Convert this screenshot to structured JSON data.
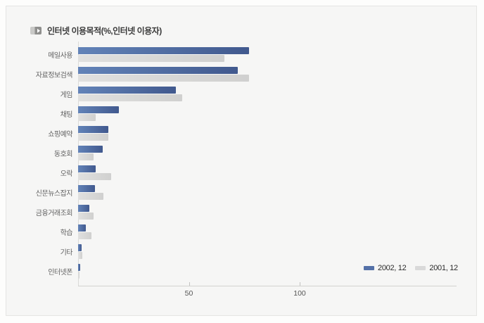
{
  "title": {
    "text": "인터넷 이용목적(%,인터넷 이용자)",
    "icon": "play-arrow-icon"
  },
  "legend": {
    "items": [
      {
        "label": "2002, 12",
        "color": "#5471a8"
      },
      {
        "label": "2001, 12",
        "color": "#d9d9d9"
      }
    ]
  },
  "chart_data": {
    "type": "bar",
    "orientation": "horizontal",
    "title": "인터넷 이용목적(%,인터넷 이용자)",
    "unit": "%",
    "categories": [
      "메일사용",
      "자료정보검색",
      "게임",
      "채팅",
      "쇼핑예약",
      "동호회",
      "오락",
      "신문뉴스잡지",
      "금융거래조회",
      "학습",
      "기타",
      "인터넷폰"
    ],
    "series": [
      {
        "name": "2002, 12",
        "color": "#5471a8",
        "gradient": [
          "#6283b8",
          "#41598e"
        ],
        "values": [
          77,
          72,
          44,
          18.5,
          13.5,
          11,
          8,
          7.5,
          5,
          3.5,
          1.5,
          1
        ]
      },
      {
        "name": "2001, 12",
        "color": "#d9d9d9",
        "gradient": [
          "#e0e0df",
          "#d0d0cf"
        ],
        "values": [
          66,
          77,
          47,
          8,
          13.5,
          7,
          15,
          11.5,
          7,
          6,
          2,
          0.7
        ]
      }
    ],
    "xticks": [
      50,
      100
    ],
    "xlim": [
      0,
      170
    ],
    "grid": false,
    "legend_position": "bottom-right"
  }
}
